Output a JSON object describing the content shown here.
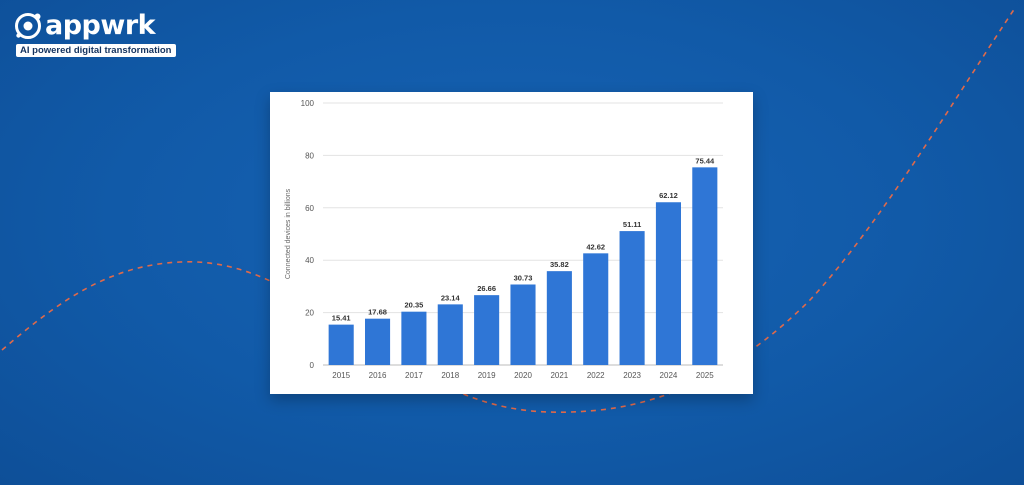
{
  "brand": {
    "name": "appwrk",
    "tagline": "AI powered digital transformation",
    "logo_icon": "appwrk-logo-mark"
  },
  "colors": {
    "background": "#115aa8",
    "bar": "#2f76d6",
    "curve": "#e06a4a"
  },
  "chart_data": {
    "type": "bar",
    "categories": [
      "2015",
      "2016",
      "2017",
      "2018",
      "2019",
      "2020",
      "2021",
      "2022",
      "2023",
      "2024",
      "2025"
    ],
    "values": [
      15.41,
      17.68,
      20.35,
      23.14,
      26.66,
      30.73,
      35.82,
      42.62,
      51.11,
      62.12,
      75.44
    ],
    "value_labels": [
      "15.41",
      "17.68",
      "20.35",
      "23.14",
      "26.66",
      "30.73",
      "35.82",
      "42.62",
      "51.11",
      "62.12",
      "75.44"
    ],
    "ylabel": "Connected devices in billions",
    "yticks": [
      "0",
      "20",
      "40",
      "60",
      "80",
      "100"
    ],
    "ylim": [
      0,
      100
    ],
    "grid": true
  }
}
